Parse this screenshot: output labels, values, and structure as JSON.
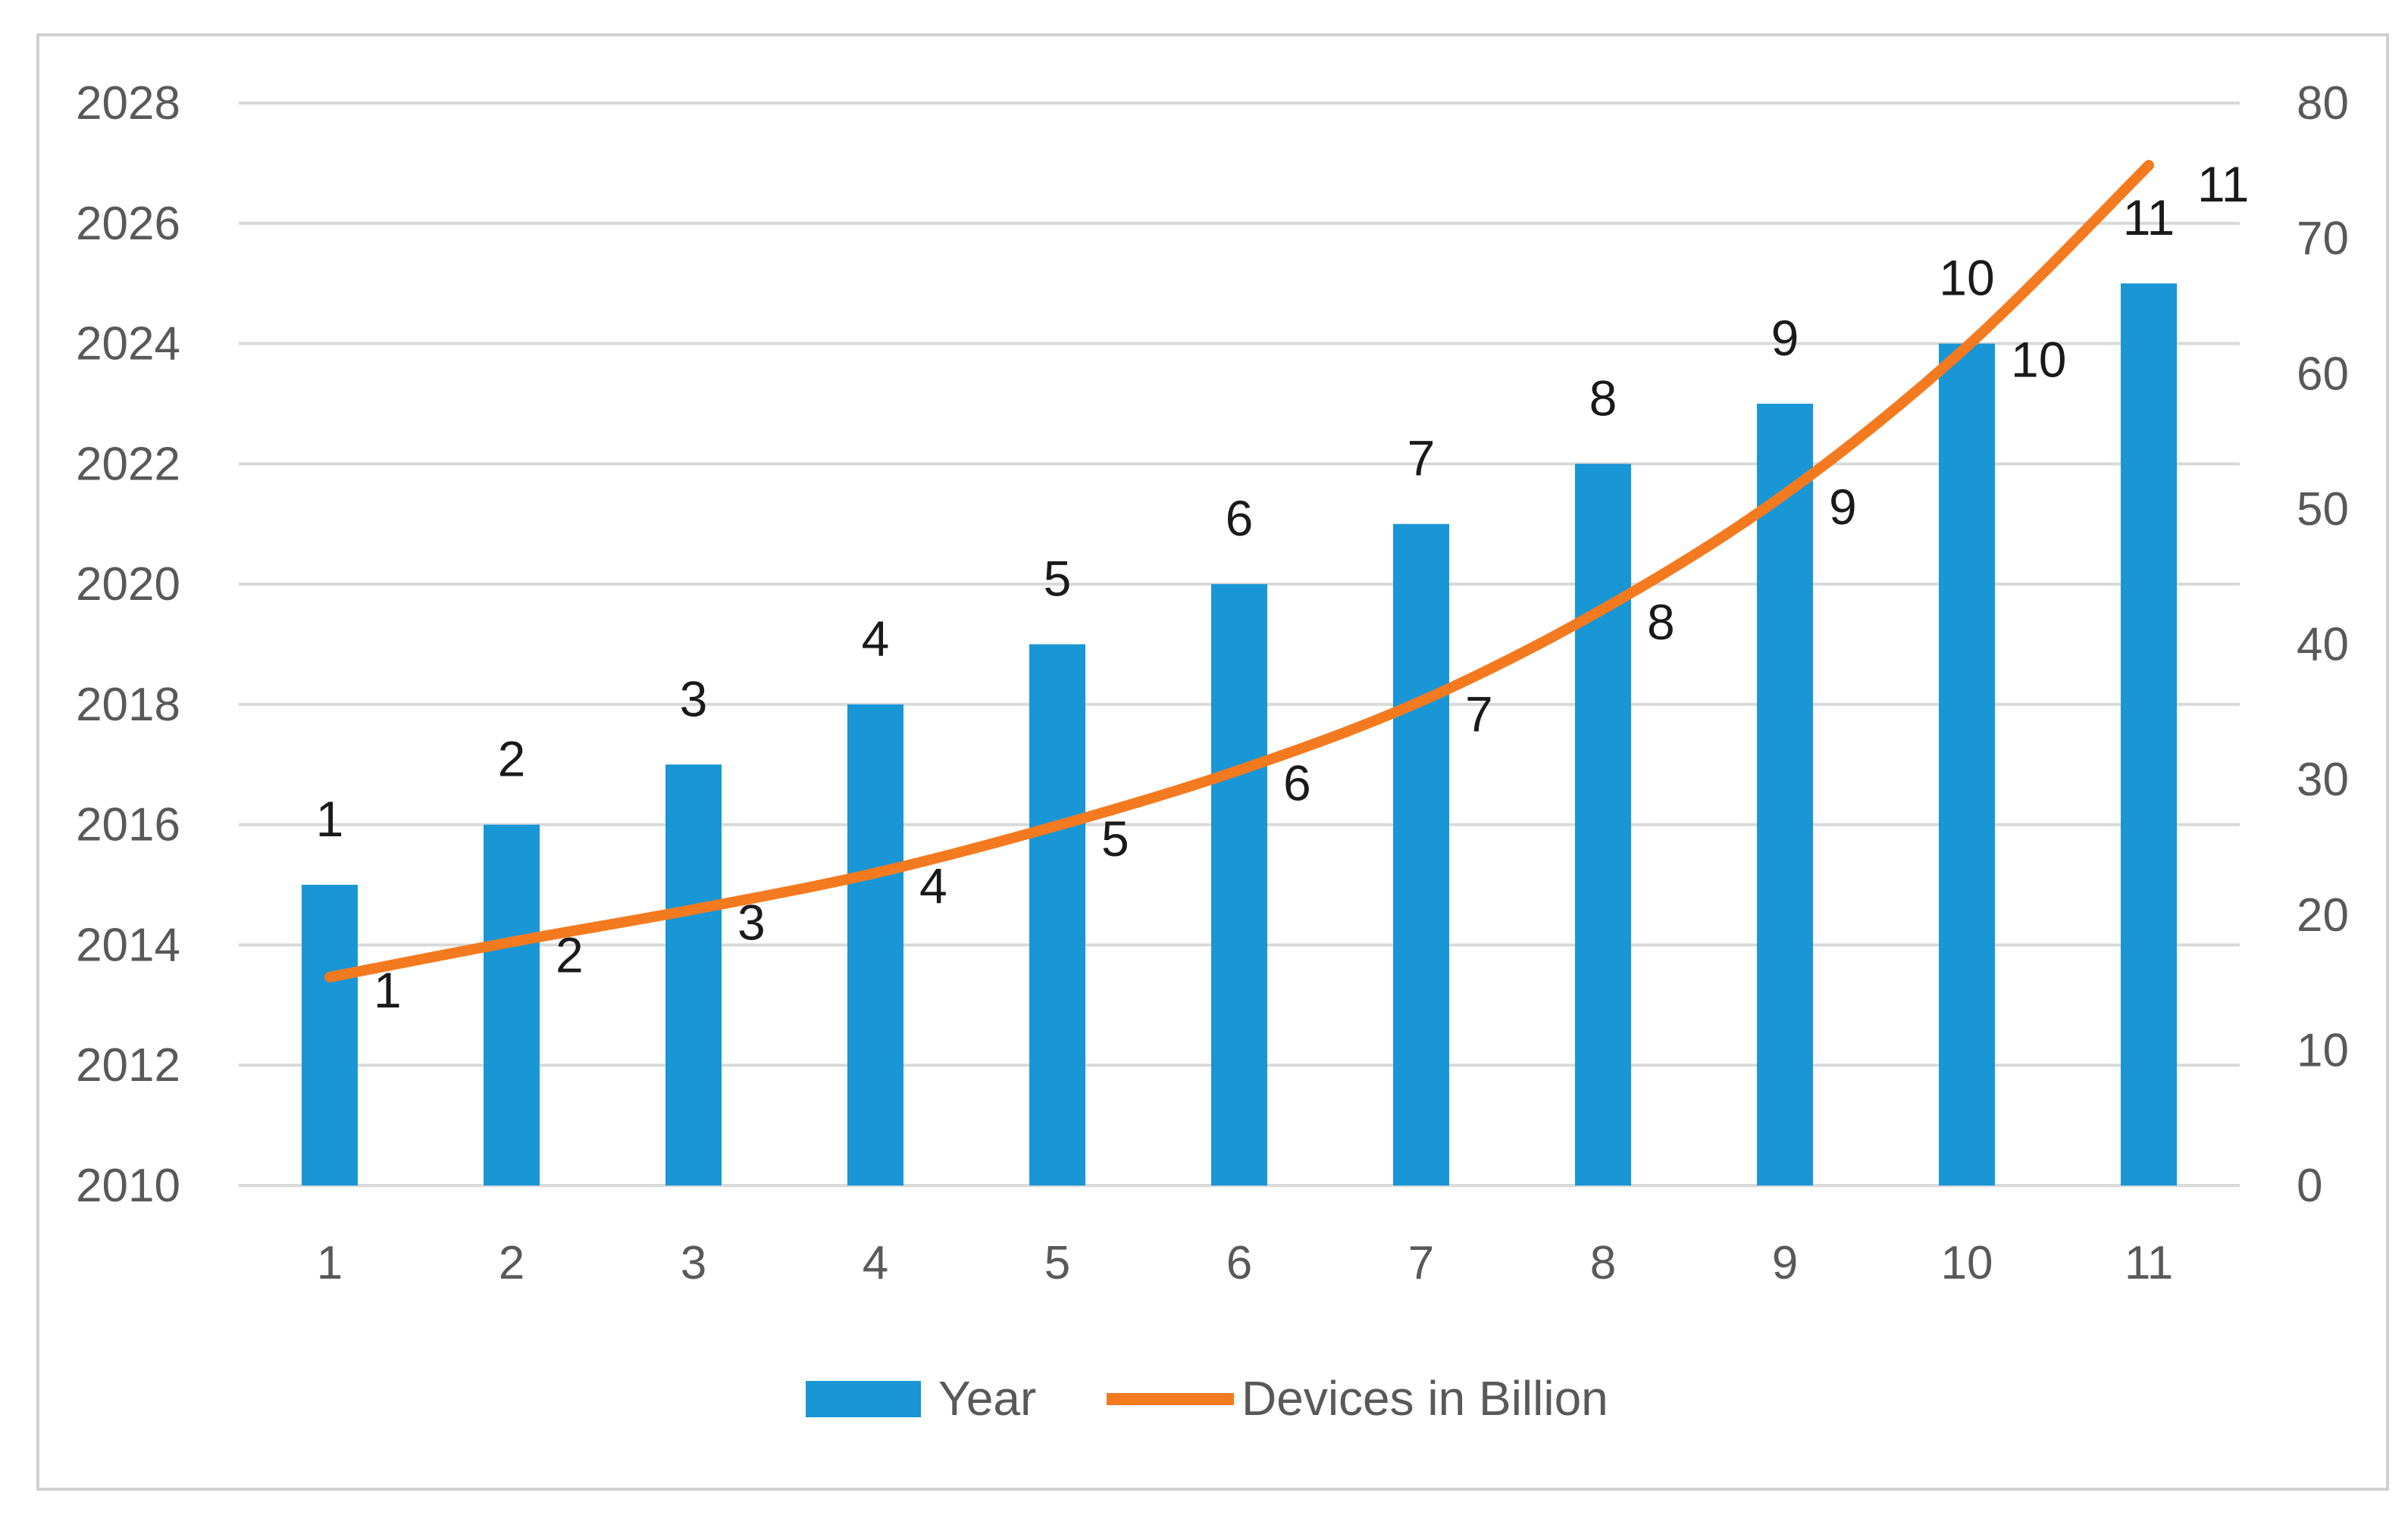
{
  "colors": {
    "bar": "#1996d6",
    "line": "#f47a20",
    "grid": "#d9d9d9",
    "frame": "#d0d0d0",
    "tick_text": "#595959",
    "label_text": "#1a1a1a"
  },
  "chart_data": {
    "type": "bar",
    "combo": "bar-line",
    "grid": true,
    "legend_position": "bottom",
    "categories": [
      "1",
      "2",
      "3",
      "4",
      "5",
      "6",
      "7",
      "8",
      "9",
      "10",
      "11"
    ],
    "series": [
      {
        "name": "Year",
        "type": "bar",
        "axis": "left",
        "values": [
          2015,
          2016,
          2017,
          2018,
          2019,
          2020,
          2021,
          2022,
          2023,
          2024,
          2025
        ],
        "data_labels": [
          "1",
          "2",
          "3",
          "4",
          "5",
          "6",
          "7",
          "8",
          "9",
          "10",
          "11"
        ]
      },
      {
        "name": "Devices in Billion",
        "type": "line",
        "axis": "right",
        "values": [
          15.4,
          18,
          20.4,
          23.1,
          26.6,
          30.7,
          35.8,
          42.6,
          51.1,
          62,
          75.4
        ],
        "data_labels": [
          "1",
          "2",
          "3",
          "4",
          "5",
          "6",
          "7",
          "8",
          "9",
          "10",
          "11"
        ]
      }
    ],
    "left_axis": {
      "ylim": [
        2010,
        2028
      ],
      "ticks": [
        "2010",
        "2012",
        "2014",
        "2016",
        "2018",
        "2020",
        "2022",
        "2024",
        "2026",
        "2028"
      ]
    },
    "right_axis": {
      "ylim": [
        0,
        80
      ],
      "ticks": [
        "0",
        "10",
        "20",
        "30",
        "40",
        "50",
        "60",
        "70",
        "80"
      ]
    }
  }
}
